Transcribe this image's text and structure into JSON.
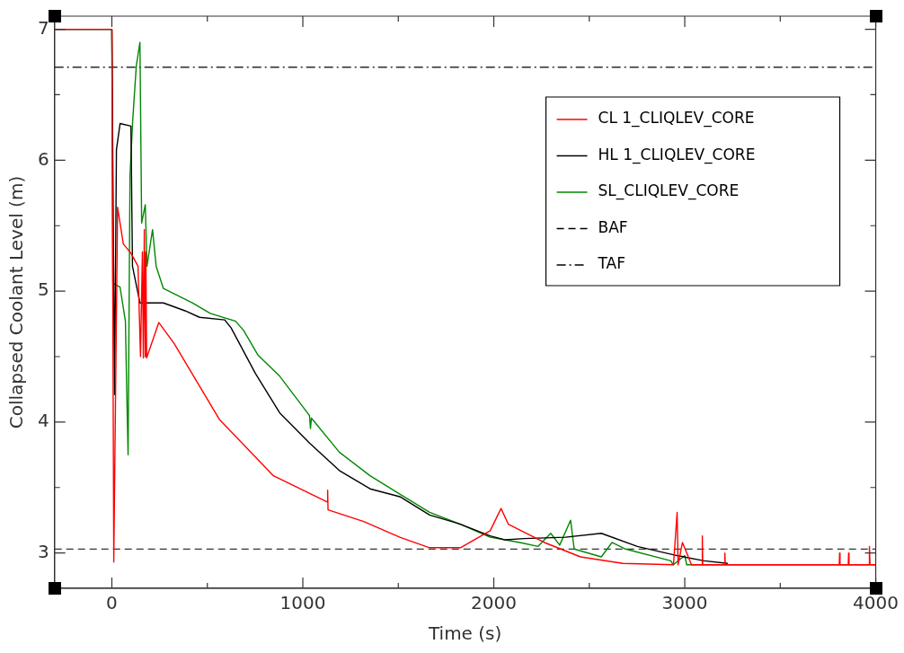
{
  "chart_data": {
    "type": "line",
    "xlabel": "Time (s)",
    "ylabel": "Collapsed Coolant Level (m)",
    "xlim": [
      -300,
      4000
    ],
    "xticks": [
      {
        "value": -300,
        "label": null
      },
      0,
      {
        "value": 500,
        "label": null
      },
      1000,
      {
        "value": 1500,
        "label": null
      },
      2000,
      {
        "value": 2500,
        "label": null
      },
      3000,
      {
        "value": 3500,
        "label": null
      },
      4000
    ],
    "ylim": [
      2.73,
      7.1
    ],
    "yticks": [
      3,
      {
        "value": 3.5,
        "label": null
      },
      4,
      {
        "value": 4.5,
        "label": null
      },
      5,
      {
        "value": 5.5,
        "label": null
      },
      6,
      {
        "value": 6.5,
        "label": null
      },
      7
    ],
    "grid": false,
    "legend": "top right",
    "marker": "none",
    "line_style": "solid",
    "series": [
      {
        "name": "CL 1_CLIQLEV_CORE",
        "color": "#ff0000",
        "x": [
          -300,
          0,
          10,
          30,
          60,
          100,
          137,
          150,
          160,
          165,
          170,
          175,
          178,
          182,
          246,
          326,
          563,
          846,
          1128,
          1130,
          1132,
          1319,
          1508,
          1664,
          1825,
          1981,
          2038,
          2076,
          2265,
          2454,
          2676,
          2941,
          2960,
          2965,
          2988,
          3035,
          3090,
          3092,
          3094,
          3208,
          3210,
          3212,
          3809,
          3811,
          3813,
          3856,
          3858,
          3860,
          3965,
          3967,
          3970,
          4000
        ],
        "values": [
          7,
          7,
          2.93,
          5.64,
          5.36,
          5.29,
          5.19,
          4.5,
          5.3,
          4.49,
          5.47,
          4.5,
          5.3,
          4.49,
          4.76,
          4.6,
          4.02,
          3.59,
          3.39,
          3.48,
          3.33,
          3.24,
          3.12,
          3.04,
          3.04,
          3.17,
          3.34,
          3.22,
          3.08,
          2.97,
          2.92,
          2.91,
          3.31,
          2.91,
          3.08,
          2.91,
          2.91,
          3.13,
          2.91,
          2.91,
          3,
          2.91,
          2.91,
          3,
          2.91,
          2.91,
          3,
          2.91,
          2.91,
          3.05,
          2.91,
          2.91
        ]
      },
      {
        "name": "HL 1_CLIQLEV_CORE",
        "color": "#000000",
        "x": [
          -300,
          0,
          14,
          24,
          43,
          100,
          108,
          147,
          270,
          383,
          459,
          591,
          624,
          752,
          879,
          1035,
          1191,
          1352,
          1508,
          1664,
          1825,
          1981,
          2061,
          2156,
          2374,
          2563,
          2752,
          2960,
          3102,
          3225
        ],
        "values": [
          7,
          7,
          4.21,
          6.08,
          6.28,
          6.26,
          5.19,
          4.91,
          4.91,
          4.85,
          4.8,
          4.78,
          4.72,
          4.37,
          4.07,
          3.84,
          3.63,
          3.49,
          3.43,
          3.29,
          3.22,
          3.13,
          3.1,
          3.11,
          3.12,
          3.15,
          3.05,
          2.98,
          2.94,
          2.92
        ]
      },
      {
        "name": "SL_CLIQLEV_CORE",
        "color": "#008800",
        "x": [
          -300,
          0,
          5,
          43,
          71,
          76,
          85,
          95,
          109,
          128,
          147,
          156,
          175,
          184,
          213,
          232,
          270,
          421,
          515,
          648,
          690,
          766,
          879,
          1035,
          1040,
          1045,
          1191,
          1352,
          1508,
          1664,
          1825,
          1981,
          2137,
          2232,
          2298,
          2345,
          2402,
          2421,
          2563,
          2619,
          2690,
          2927,
          2940,
          3000,
          3010,
          4000
        ],
        "values": [
          7,
          7,
          5.06,
          5.03,
          4.77,
          4.38,
          3.75,
          5.88,
          6.3,
          6.72,
          6.9,
          5.52,
          5.66,
          5.19,
          5.47,
          5.19,
          5.02,
          4.91,
          4.83,
          4.77,
          4.7,
          4.51,
          4.35,
          4.05,
          3.95,
          4.03,
          3.77,
          3.59,
          3.45,
          3.31,
          3.22,
          3.12,
          3.08,
          3.05,
          3.15,
          3.06,
          3.25,
          3.03,
          2.97,
          3.08,
          3.03,
          2.94,
          2.91,
          2.98,
          2.91,
          2.91
        ]
      }
    ],
    "ref_lines": [
      {
        "axis": "y",
        "value": 3.03,
        "label": "BAF",
        "color": "#000000",
        "line_style": "dashed"
      },
      {
        "axis": "y",
        "value": 6.71,
        "label": "TAF",
        "color": "#000000",
        "line_style": "dashdot"
      }
    ]
  }
}
